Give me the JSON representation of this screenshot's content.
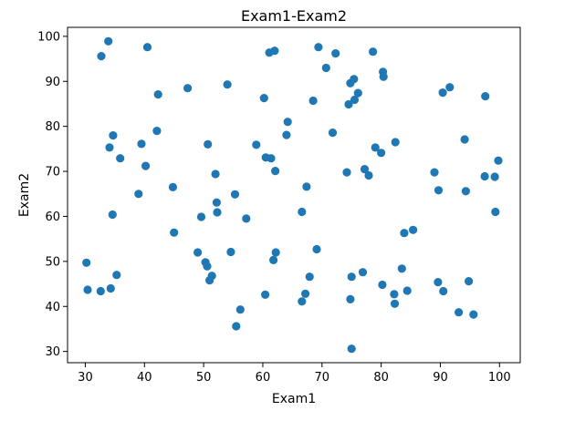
{
  "chart_data": {
    "type": "scatter",
    "title": "Exam1-Exam2",
    "xlabel": "Exam1",
    "ylabel": "Exam2",
    "xlim": [
      27,
      103.5
    ],
    "ylim": [
      27.5,
      102
    ],
    "xticks": [
      30,
      40,
      50,
      60,
      70,
      80,
      90,
      100
    ],
    "yticks": [
      30,
      40,
      50,
      60,
      70,
      80,
      90,
      100
    ],
    "grid": false,
    "legend": "none",
    "marker_color": "#1f77b4",
    "series": [
      {
        "points": [
          [
            30.2,
            49.7
          ],
          [
            30.4,
            43.7
          ],
          [
            32.6,
            43.4
          ],
          [
            32.7,
            95.6
          ],
          [
            33.9,
            98.9
          ],
          [
            34.1,
            75.3
          ],
          [
            34.3,
            44.0
          ],
          [
            34.6,
            60.4
          ],
          [
            34.7,
            78.0
          ],
          [
            35.3,
            47.0
          ],
          [
            35.9,
            72.9
          ],
          [
            39.0,
            65.0
          ],
          [
            39.5,
            76.1
          ],
          [
            40.2,
            71.2
          ],
          [
            40.5,
            97.6
          ],
          [
            42.1,
            79.0
          ],
          [
            42.3,
            87.1
          ],
          [
            44.8,
            66.5
          ],
          [
            45.0,
            56.4
          ],
          [
            47.3,
            88.5
          ],
          [
            49.0,
            52.0
          ],
          [
            49.6,
            59.9
          ],
          [
            50.3,
            49.8
          ],
          [
            50.6,
            48.9
          ],
          [
            50.7,
            76.0
          ],
          [
            51.0,
            45.8
          ],
          [
            51.4,
            46.8
          ],
          [
            52.0,
            69.4
          ],
          [
            52.2,
            63.1
          ],
          [
            52.3,
            60.9
          ],
          [
            54.0,
            89.3
          ],
          [
            54.6,
            52.1
          ],
          [
            55.3,
            64.9
          ],
          [
            55.5,
            35.6
          ],
          [
            56.2,
            39.3
          ],
          [
            57.2,
            59.5
          ],
          [
            58.9,
            75.9
          ],
          [
            60.2,
            86.3
          ],
          [
            60.4,
            42.6
          ],
          [
            60.5,
            73.1
          ],
          [
            61.1,
            96.4
          ],
          [
            61.4,
            72.9
          ],
          [
            61.8,
            50.3
          ],
          [
            62.0,
            96.8
          ],
          [
            62.1,
            70.1
          ],
          [
            62.2,
            52.0
          ],
          [
            64.0,
            78.1
          ],
          [
            64.2,
            81.0
          ],
          [
            66.6,
            61.0
          ],
          [
            66.6,
            41.1
          ],
          [
            67.2,
            42.8
          ],
          [
            67.4,
            66.6
          ],
          [
            67.9,
            46.6
          ],
          [
            68.5,
            85.7
          ],
          [
            69.1,
            52.7
          ],
          [
            69.4,
            97.6
          ],
          [
            70.7,
            93.0
          ],
          [
            71.8,
            78.6
          ],
          [
            72.3,
            96.2
          ],
          [
            74.2,
            69.8
          ],
          [
            74.5,
            84.9
          ],
          [
            74.8,
            89.6
          ],
          [
            74.8,
            41.6
          ],
          [
            75.0,
            46.6
          ],
          [
            75.0,
            30.6
          ],
          [
            75.4,
            90.5
          ],
          [
            75.5,
            85.9
          ],
          [
            76.1,
            87.4
          ],
          [
            76.9,
            47.6
          ],
          [
            77.2,
            70.5
          ],
          [
            77.9,
            69.1
          ],
          [
            78.6,
            96.6
          ],
          [
            79.0,
            75.3
          ],
          [
            80.0,
            74.1
          ],
          [
            80.2,
            44.8
          ],
          [
            80.3,
            92.1
          ],
          [
            80.4,
            91.0
          ],
          [
            82.2,
            42.7
          ],
          [
            82.3,
            40.6
          ],
          [
            82.4,
            76.5
          ],
          [
            83.5,
            48.4
          ],
          [
            83.9,
            56.3
          ],
          [
            84.4,
            43.5
          ],
          [
            85.4,
            57.0
          ],
          [
            89.0,
            69.8
          ],
          [
            89.6,
            45.4
          ],
          [
            89.7,
            65.8
          ],
          [
            90.4,
            87.5
          ],
          [
            90.5,
            43.4
          ],
          [
            91.6,
            88.7
          ],
          [
            93.1,
            38.7
          ],
          [
            94.1,
            77.1
          ],
          [
            94.3,
            65.6
          ],
          [
            94.8,
            45.6
          ],
          [
            95.6,
            38.2
          ],
          [
            97.5,
            68.9
          ],
          [
            97.6,
            86.7
          ],
          [
            99.2,
            68.8
          ],
          [
            99.3,
            61.0
          ],
          [
            99.8,
            72.4
          ]
        ]
      }
    ]
  }
}
